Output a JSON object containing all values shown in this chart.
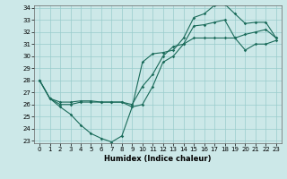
{
  "xlabel": "Humidex (Indice chaleur)",
  "bg_color": "#cce8e8",
  "grid_color": "#99cccc",
  "line_color": "#1a6b5a",
  "line1_y": [
    28,
    26.5,
    26.2,
    26.2,
    26.3,
    26.3,
    26.2,
    26.2,
    26.2,
    25.8,
    29.5,
    30.2,
    30.3,
    30.5,
    31.5,
    33.2,
    33.5,
    34.2,
    34.3,
    33.5,
    32.7,
    32.8,
    32.8,
    31.5
  ],
  "line2_y": [
    28,
    26.5,
    26.0,
    26.0,
    26.2,
    26.2,
    26.2,
    26.2,
    26.2,
    26.0,
    27.5,
    28.5,
    30.0,
    30.8,
    31.0,
    31.5,
    31.5,
    31.5,
    31.5,
    31.5,
    31.8,
    32.0,
    32.2,
    31.5
  ],
  "line3_y": [
    28,
    26.5,
    25.8,
    25.2,
    24.3,
    23.6,
    23.2,
    22.9,
    23.4,
    25.8,
    26.0,
    27.5,
    29.5,
    30.0,
    31.0,
    32.5,
    32.6,
    32.8,
    33.0,
    31.5,
    30.5,
    31.0,
    31.0,
    31.3
  ],
  "ylim": [
    23,
    34
  ],
  "xlim": [
    -0.5,
    23.5
  ],
  "yticks": [
    23,
    24,
    25,
    26,
    27,
    28,
    29,
    30,
    31,
    32,
    33,
    34
  ],
  "xticks": [
    0,
    1,
    2,
    3,
    4,
    5,
    6,
    7,
    8,
    9,
    10,
    11,
    12,
    13,
    14,
    15,
    16,
    17,
    18,
    19,
    20,
    21,
    22,
    23
  ],
  "tick_fontsize": 5,
  "xlabel_fontsize": 6
}
